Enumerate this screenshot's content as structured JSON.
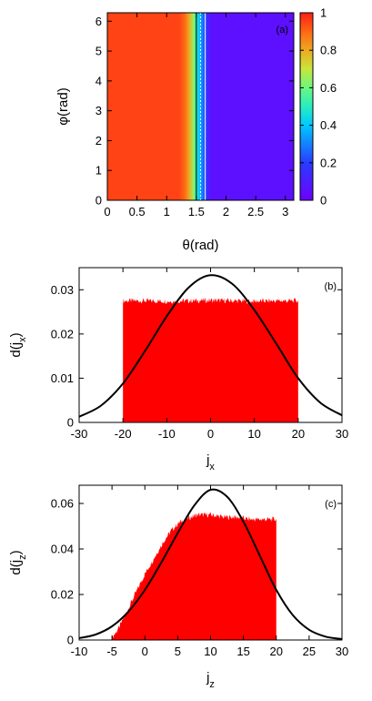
{
  "chart_data": [
    {
      "type": "heatmap",
      "panel_label": "(a)",
      "xlabel": "θ(rad)",
      "ylabel": "φ(rad)",
      "xlim": [
        0,
        3.14159
      ],
      "ylim": [
        0,
        6.28318
      ],
      "xticks": [
        0,
        0.5,
        1,
        1.5,
        2,
        2.5,
        3
      ],
      "xtick_labels": [
        "0",
        "0.5",
        "1",
        "1.5",
        "2",
        "2.5",
        "3"
      ],
      "yticks": [
        0,
        1,
        2,
        3,
        4,
        5,
        6
      ],
      "ytick_labels": [
        "0",
        "1",
        "2",
        "3",
        "4",
        "5",
        "6"
      ],
      "colorbar": {
        "range": [
          0,
          1
        ],
        "ticks": [
          0,
          0.2,
          0.4,
          0.6,
          0.8,
          1
        ],
        "tick_labels": [
          "0",
          "0.2",
          "0.4",
          "0.6",
          "0.8",
          "1"
        ]
      },
      "columns": {
        "theta": [
          0,
          1.2,
          1.3,
          1.38,
          1.45,
          1.5,
          1.55,
          1.6,
          1.65,
          1.7,
          1.75,
          3.14159
        ],
        "value": [
          0.95,
          0.95,
          0.9,
          0.8,
          0.65,
          0.5,
          0.4,
          0.3,
          0.2,
          0.12,
          0.05,
          0.05
        ]
      },
      "reference_lines_theta": [
        1.5,
        1.57,
        1.65
      ],
      "colors": {
        "low": "#6a00ff",
        "mid": "#40ffa0",
        "high": "#ff2a1a",
        "ref_line_dark": "#000000",
        "ref_line_light": "#ffffff"
      }
    },
    {
      "type": "bar",
      "panel_label": "(b)",
      "xlabel": "jx",
      "ylabel": "d(jx)",
      "xlim": [
        -30,
        30
      ],
      "ylim": [
        0,
        0.035
      ],
      "xticks": [
        -30,
        -20,
        -10,
        0,
        10,
        20,
        30
      ],
      "xtick_labels": [
        "-30",
        "-20",
        "-10",
        "0",
        "10",
        "20",
        "30"
      ],
      "yticks": [
        0,
        0.01,
        0.02,
        0.03
      ],
      "ytick_labels": [
        "0",
        "0.01",
        "0.02",
        "0.03"
      ],
      "histogram": {
        "x": [
          -20,
          -15,
          -10,
          -5,
          0,
          5,
          10,
          15,
          20
        ],
        "values": [
          0.0275,
          0.0275,
          0.0274,
          0.0275,
          0.0276,
          0.0275,
          0.0274,
          0.0275,
          0.0275
        ],
        "color": "#ff0000"
      },
      "curve": {
        "x": [
          -30,
          -25,
          -20,
          -15,
          -10,
          -5,
          0,
          5,
          10,
          15,
          20,
          25,
          30
        ],
        "values": [
          0.0013,
          0.0038,
          0.0088,
          0.0161,
          0.024,
          0.0305,
          0.0333,
          0.0313,
          0.0254,
          0.0178,
          0.01,
          0.0045,
          0.0016
        ],
        "color": "#000000"
      }
    },
    {
      "type": "bar",
      "panel_label": "(c)",
      "xlabel": "jz",
      "ylabel": "d(jz)",
      "xlim": [
        -10,
        30
      ],
      "ylim": [
        0,
        0.068
      ],
      "xticks": [
        -10,
        -5,
        0,
        5,
        10,
        15,
        20,
        25,
        30
      ],
      "xtick_labels": [
        "-10",
        "-5",
        "0",
        "5",
        "10",
        "15",
        "20",
        "25",
        "30"
      ],
      "yticks": [
        0,
        0.02,
        0.04,
        0.06
      ],
      "ytick_labels": [
        "0",
        "0.02",
        "0.04",
        "0.06"
      ],
      "histogram": {
        "x": [
          -5,
          -4,
          -3,
          -2,
          -1,
          0,
          1,
          2,
          3,
          4,
          5,
          6,
          7,
          8,
          10,
          12,
          14,
          16,
          18,
          20
        ],
        "values": [
          0.001,
          0.005,
          0.011,
          0.017,
          0.023,
          0.029,
          0.034,
          0.039,
          0.044,
          0.048,
          0.051,
          0.053,
          0.054,
          0.055,
          0.055,
          0.054,
          0.054,
          0.053,
          0.053,
          0.053
        ],
        "color": "#ff0000"
      },
      "curve": {
        "x": [
          -10,
          -7.5,
          -5,
          -2.5,
          0,
          2.5,
          5,
          7.5,
          10,
          12.5,
          15,
          17.5,
          20,
          22.5,
          25,
          27.5,
          30
        ],
        "values": [
          0.0008,
          0.0024,
          0.006,
          0.0125,
          0.022,
          0.034,
          0.047,
          0.059,
          0.066,
          0.063,
          0.052,
          0.037,
          0.022,
          0.011,
          0.0045,
          0.0015,
          0.0004
        ],
        "color": "#000000"
      }
    }
  ]
}
